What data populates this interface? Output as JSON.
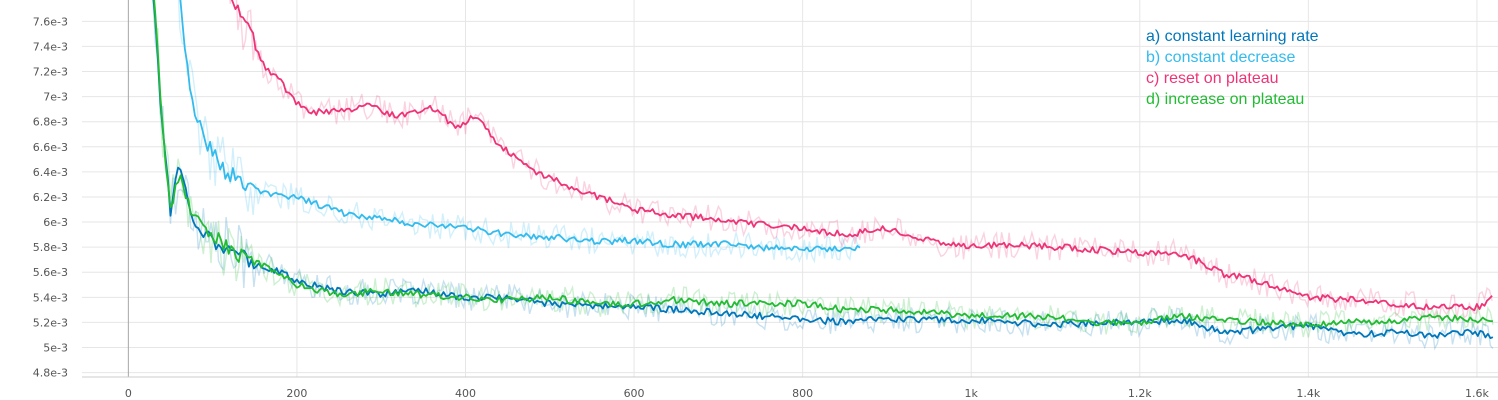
{
  "chart_data": {
    "type": "line",
    "title": "",
    "xlabel": "",
    "ylabel": "",
    "xlim": [
      -55,
      1625
    ],
    "ylim": [
      0.004765,
      0.00777
    ],
    "grid": true,
    "legend_position": "top-right",
    "x_ticks": [
      0,
      200,
      400,
      600,
      800,
      1000,
      1200,
      1400,
      1600
    ],
    "x_tick_labels": [
      "0",
      "200",
      "400",
      "600",
      "800",
      "1k",
      "1.2k",
      "1.4k",
      "1.6k"
    ],
    "y_ticks": [
      0.0048,
      0.005,
      0.0052,
      0.0054,
      0.0056,
      0.0058,
      0.006,
      0.0062,
      0.0064,
      0.0066,
      0.0068,
      0.007,
      0.0072,
      0.0074,
      0.0076
    ],
    "y_tick_labels": [
      "4.8e-3",
      "5e-3",
      "5.2e-3",
      "5.4e-3",
      "5.6e-3",
      "5.8e-3",
      "6e-3",
      "6.2e-3",
      "6.4e-3",
      "6.6e-3",
      "6.8e-3",
      "7e-3",
      "7.2e-3",
      "7.4e-3",
      "7.6e-3"
    ],
    "series": [
      {
        "name": "a) constant learning rate",
        "color": "#0077bb",
        "x": [
          20,
          30,
          40,
          50,
          60,
          70,
          80,
          90,
          100,
          120,
          140,
          160,
          180,
          200,
          250,
          300,
          350,
          400,
          450,
          500,
          550,
          600,
          650,
          700,
          750,
          800,
          850,
          900,
          950,
          1000,
          1050,
          1100,
          1150,
          1200,
          1250,
          1300,
          1350,
          1400,
          1450,
          1500,
          1550,
          1600,
          1620
        ],
        "y": [
          0.0085,
          0.0078,
          0.0068,
          0.0061,
          0.00645,
          0.0062,
          0.006,
          0.00593,
          0.00585,
          0.00578,
          0.0057,
          0.00565,
          0.0056,
          0.00553,
          0.00545,
          0.00543,
          0.00545,
          0.0054,
          0.0054,
          0.00535,
          0.00533,
          0.00533,
          0.0053,
          0.00528,
          0.00525,
          0.00523,
          0.0052,
          0.00523,
          0.00522,
          0.00522,
          0.0052,
          0.00518,
          0.0052,
          0.0052,
          0.00522,
          0.00512,
          0.00515,
          0.00518,
          0.0051,
          0.00512,
          0.0051,
          0.00512,
          0.00508
        ]
      },
      {
        "name": "b) constant decrease",
        "color": "#33bbee",
        "x": [
          55,
          65,
          75,
          85,
          95,
          105,
          115,
          130,
          150,
          170,
          200,
          250,
          300,
          350,
          400,
          450,
          500,
          550,
          600,
          650,
          700,
          750,
          800,
          850,
          870
        ],
        "y": [
          0.0082,
          0.0075,
          0.007,
          0.00675,
          0.0066,
          0.0065,
          0.0064,
          0.00635,
          0.00625,
          0.00622,
          0.0062,
          0.00608,
          0.00603,
          0.00598,
          0.00595,
          0.0059,
          0.00588,
          0.00585,
          0.00585,
          0.00582,
          0.00583,
          0.0058,
          0.00578,
          0.00579,
          0.0058
        ]
      },
      {
        "name": "c) reset on plateau",
        "color": "#ee3377",
        "x": [
          115,
          130,
          145,
          160,
          180,
          200,
          220,
          250,
          280,
          320,
          360,
          390,
          400,
          410,
          440,
          470,
          500,
          550,
          600,
          650,
          700,
          750,
          800,
          850,
          900,
          950,
          1000,
          1050,
          1100,
          1150,
          1200,
          1250,
          1280,
          1300,
          1330,
          1360,
          1400,
          1450,
          1500,
          1550,
          1600,
          1620
        ],
        "y": [
          0.0079,
          0.0077,
          0.0075,
          0.00725,
          0.00712,
          0.00695,
          0.00688,
          0.00688,
          0.00693,
          0.00685,
          0.00692,
          0.00675,
          0.0068,
          0.00685,
          0.00662,
          0.00645,
          0.00635,
          0.00622,
          0.0061,
          0.00605,
          0.00603,
          0.00598,
          0.00595,
          0.0059,
          0.00595,
          0.00585,
          0.0058,
          0.00582,
          0.0058,
          0.00578,
          0.00575,
          0.00575,
          0.00565,
          0.00558,
          0.00555,
          0.00548,
          0.0054,
          0.00538,
          0.00535,
          0.00532,
          0.00532,
          0.0054
        ]
      },
      {
        "name": "d) increase on plateau",
        "color": "#22bb33",
        "x": [
          20,
          30,
          40,
          50,
          60,
          70,
          80,
          90,
          100,
          120,
          140,
          160,
          180,
          200,
          250,
          300,
          350,
          400,
          450,
          500,
          550,
          600,
          650,
          700,
          750,
          800,
          850,
          900,
          950,
          1000,
          1050,
          1100,
          1150,
          1200,
          1250,
          1300,
          1350,
          1400,
          1450,
          1500,
          1550,
          1600,
          1620
        ],
        "y": [
          0.0085,
          0.0078,
          0.0068,
          0.0061,
          0.0064,
          0.00615,
          0.00602,
          0.00592,
          0.0059,
          0.00578,
          0.0057,
          0.00565,
          0.00558,
          0.0055,
          0.00542,
          0.00545,
          0.00542,
          0.0054,
          0.00538,
          0.0054,
          0.00535,
          0.00535,
          0.00538,
          0.00535,
          0.00535,
          0.00535,
          0.0053,
          0.0053,
          0.00528,
          0.00525,
          0.00525,
          0.00525,
          0.0052,
          0.0052,
          0.00525,
          0.00522,
          0.0052,
          0.00518,
          0.0052,
          0.0052,
          0.00525,
          0.00522,
          0.00522
        ]
      }
    ]
  }
}
